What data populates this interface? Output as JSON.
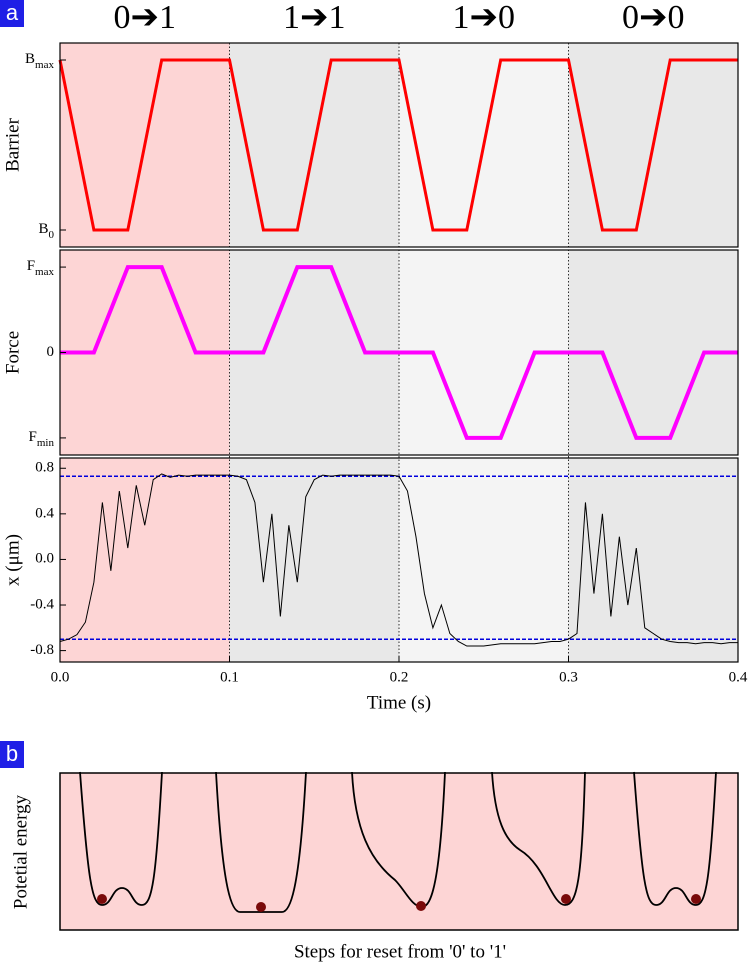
{
  "panel_labels": [
    "a",
    "b"
  ],
  "stage_labels": [
    "0➔1",
    "1➔1",
    "1➔0",
    "0➔0"
  ],
  "regions": [
    {
      "start": 0,
      "end": 0.1,
      "color": "#fdd5d5"
    },
    {
      "start": 0.1,
      "end": 0.2,
      "color": "#e8e8e8"
    },
    {
      "start": 0.2,
      "end": 0.3,
      "color": "#f4f4f4"
    },
    {
      "start": 0.3,
      "end": 0.4,
      "color": "#e8e8e8"
    }
  ],
  "chart_data": [
    {
      "type": "line",
      "y_label": "Barrier",
      "color": "#ff0000",
      "xlim": [
        0,
        0.4
      ],
      "ylim": [
        -0.1,
        1.1
      ],
      "yticks": [
        {
          "value": 0,
          "label": "B",
          "sub": "0"
        },
        {
          "value": 1,
          "label": "B",
          "sub": "max"
        }
      ],
      "x": [
        0,
        0.02,
        0.04,
        0.06,
        0.1,
        0.12,
        0.14,
        0.16,
        0.2,
        0.22,
        0.24,
        0.26,
        0.3,
        0.32,
        0.34,
        0.36,
        0.4
      ],
      "values": [
        1,
        0,
        0,
        1,
        1,
        0,
        0,
        1,
        1,
        0,
        0,
        1,
        1,
        0,
        0,
        1,
        1
      ]
    },
    {
      "type": "line",
      "y_label": "Force",
      "color": "#ff00ff",
      "xlim": [
        0,
        0.4
      ],
      "ylim": [
        -1.2,
        1.2
      ],
      "yticks": [
        {
          "value": -1,
          "label": "F",
          "sub": "min"
        },
        0,
        {
          "value": 1,
          "label": "F",
          "sub": "max"
        }
      ],
      "x": [
        0,
        0.02,
        0.04,
        0.06,
        0.08,
        0.12,
        0.14,
        0.16,
        0.18,
        0.22,
        0.24,
        0.26,
        0.28,
        0.32,
        0.34,
        0.36,
        0.38,
        0.4
      ],
      "values": [
        0,
        0,
        1,
        1,
        0,
        0,
        1,
        1,
        0,
        0,
        -1,
        -1,
        0,
        0,
        -1,
        -1,
        0,
        0
      ]
    },
    {
      "type": "line",
      "y_label": "x (μm)",
      "x_label": "Time (s)",
      "color": "#000000",
      "xlim": [
        0,
        0.4
      ],
      "ylim": [
        -0.9,
        0.89
      ],
      "xticks": [
        {
          "value": 0,
          "label": "0.0"
        },
        0.1,
        0.2,
        0.3,
        0.4
      ],
      "yticks": [
        -0.8,
        -0.4,
        {
          "value": 0,
          "label": "0.0"
        },
        0.4,
        0.8
      ],
      "reference_lines": [
        0.73,
        -0.7
      ],
      "reference_color": "#0000dd",
      "x": [
        0,
        0.005,
        0.01,
        0.015,
        0.02,
        0.025,
        0.03,
        0.035,
        0.04,
        0.045,
        0.05,
        0.055,
        0.06,
        0.065,
        0.07,
        0.075,
        0.08,
        0.085,
        0.09,
        0.095,
        0.1,
        0.105,
        0.11,
        0.115,
        0.12,
        0.125,
        0.13,
        0.135,
        0.14,
        0.145,
        0.15,
        0.155,
        0.16,
        0.165,
        0.17,
        0.175,
        0.18,
        0.185,
        0.19,
        0.195,
        0.2,
        0.205,
        0.21,
        0.215,
        0.22,
        0.225,
        0.23,
        0.235,
        0.24,
        0.245,
        0.25,
        0.255,
        0.26,
        0.265,
        0.27,
        0.275,
        0.28,
        0.285,
        0.29,
        0.295,
        0.3,
        0.305,
        0.31,
        0.315,
        0.32,
        0.325,
        0.33,
        0.335,
        0.34,
        0.345,
        0.35,
        0.355,
        0.36,
        0.365,
        0.37,
        0.375,
        0.38,
        0.385,
        0.39,
        0.395,
        0.4
      ],
      "values": [
        -0.72,
        -0.7,
        -0.66,
        -0.55,
        -0.2,
        0.5,
        -0.1,
        0.6,
        0.1,
        0.65,
        0.3,
        0.7,
        0.75,
        0.72,
        0.74,
        0.73,
        0.74,
        0.74,
        0.74,
        0.74,
        0.74,
        0.73,
        0.7,
        0.5,
        -0.2,
        0.4,
        -0.5,
        0.3,
        -0.2,
        0.55,
        0.7,
        0.74,
        0.73,
        0.74,
        0.74,
        0.74,
        0.74,
        0.74,
        0.74,
        0.74,
        0.73,
        0.6,
        0.2,
        -0.3,
        -0.6,
        -0.4,
        -0.65,
        -0.72,
        -0.76,
        -0.76,
        -0.76,
        -0.75,
        -0.74,
        -0.74,
        -0.74,
        -0.74,
        -0.74,
        -0.73,
        -0.72,
        -0.72,
        -0.7,
        -0.65,
        0.5,
        -0.3,
        0.4,
        -0.5,
        0.2,
        -0.4,
        0.1,
        -0.6,
        -0.65,
        -0.7,
        -0.72,
        -0.73,
        -0.73,
        -0.74,
        -0.73,
        -0.73,
        -0.74,
        -0.73,
        -0.73
      ]
    }
  ],
  "panel_b": {
    "y_label": "Potetial energy",
    "x_label": "Steps for reset from '0' to '1'"
  }
}
